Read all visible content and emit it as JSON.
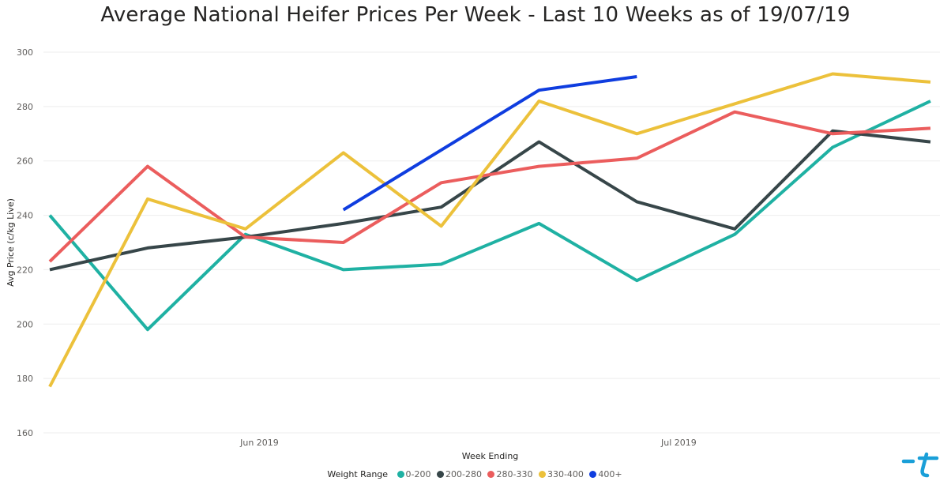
{
  "chart_data": {
    "type": "line",
    "title": "Average National Heifer Prices Per Week - Last 10 Weeks as of 19/07/19",
    "xlabel": "Week Ending",
    "ylabel": "Avg Price (c/kg Live)",
    "ylim": [
      160,
      300
    ],
    "yticks": [
      160,
      180,
      200,
      220,
      240,
      260,
      280,
      300
    ],
    "x": [
      "2019-05-17",
      "2019-05-24",
      "2019-05-31",
      "2019-06-07",
      "2019-06-14",
      "2019-06-21",
      "2019-06-28",
      "2019-07-05",
      "2019-07-12",
      "2019-07-19"
    ],
    "xtick_labels": [
      {
        "date": "2019-06-01",
        "label": "Jun 2019"
      },
      {
        "date": "2019-07-01",
        "label": "Jul 2019"
      }
    ],
    "legend_title": "Weight Range",
    "legend_position": "bottom",
    "grid": true,
    "series": [
      {
        "name": "0-200",
        "color": "#1fb1a3",
        "values": [
          240,
          198,
          233,
          220,
          222,
          237,
          216,
          233,
          265,
          282
        ]
      },
      {
        "name": "200-280",
        "color": "#374649",
        "values": [
          220,
          228,
          232,
          237,
          243,
          267,
          245,
          235,
          271,
          267
        ]
      },
      {
        "name": "280-330",
        "color": "#eb5d5d",
        "values": [
          223,
          258,
          232,
          230,
          252,
          258,
          261,
          278,
          270,
          272
        ]
      },
      {
        "name": "330-400",
        "color": "#ecc13b",
        "values": [
          177,
          246,
          235,
          263,
          236,
          282,
          270,
          281,
          292,
          289
        ]
      },
      {
        "name": "400+",
        "color": "#0f3ddf",
        "values": [
          null,
          null,
          null,
          242,
          264,
          286,
          291,
          null,
          null,
          null
        ]
      }
    ]
  },
  "logo": {
    "name": "brand-logo-icon",
    "color": "#1a9fd8"
  }
}
